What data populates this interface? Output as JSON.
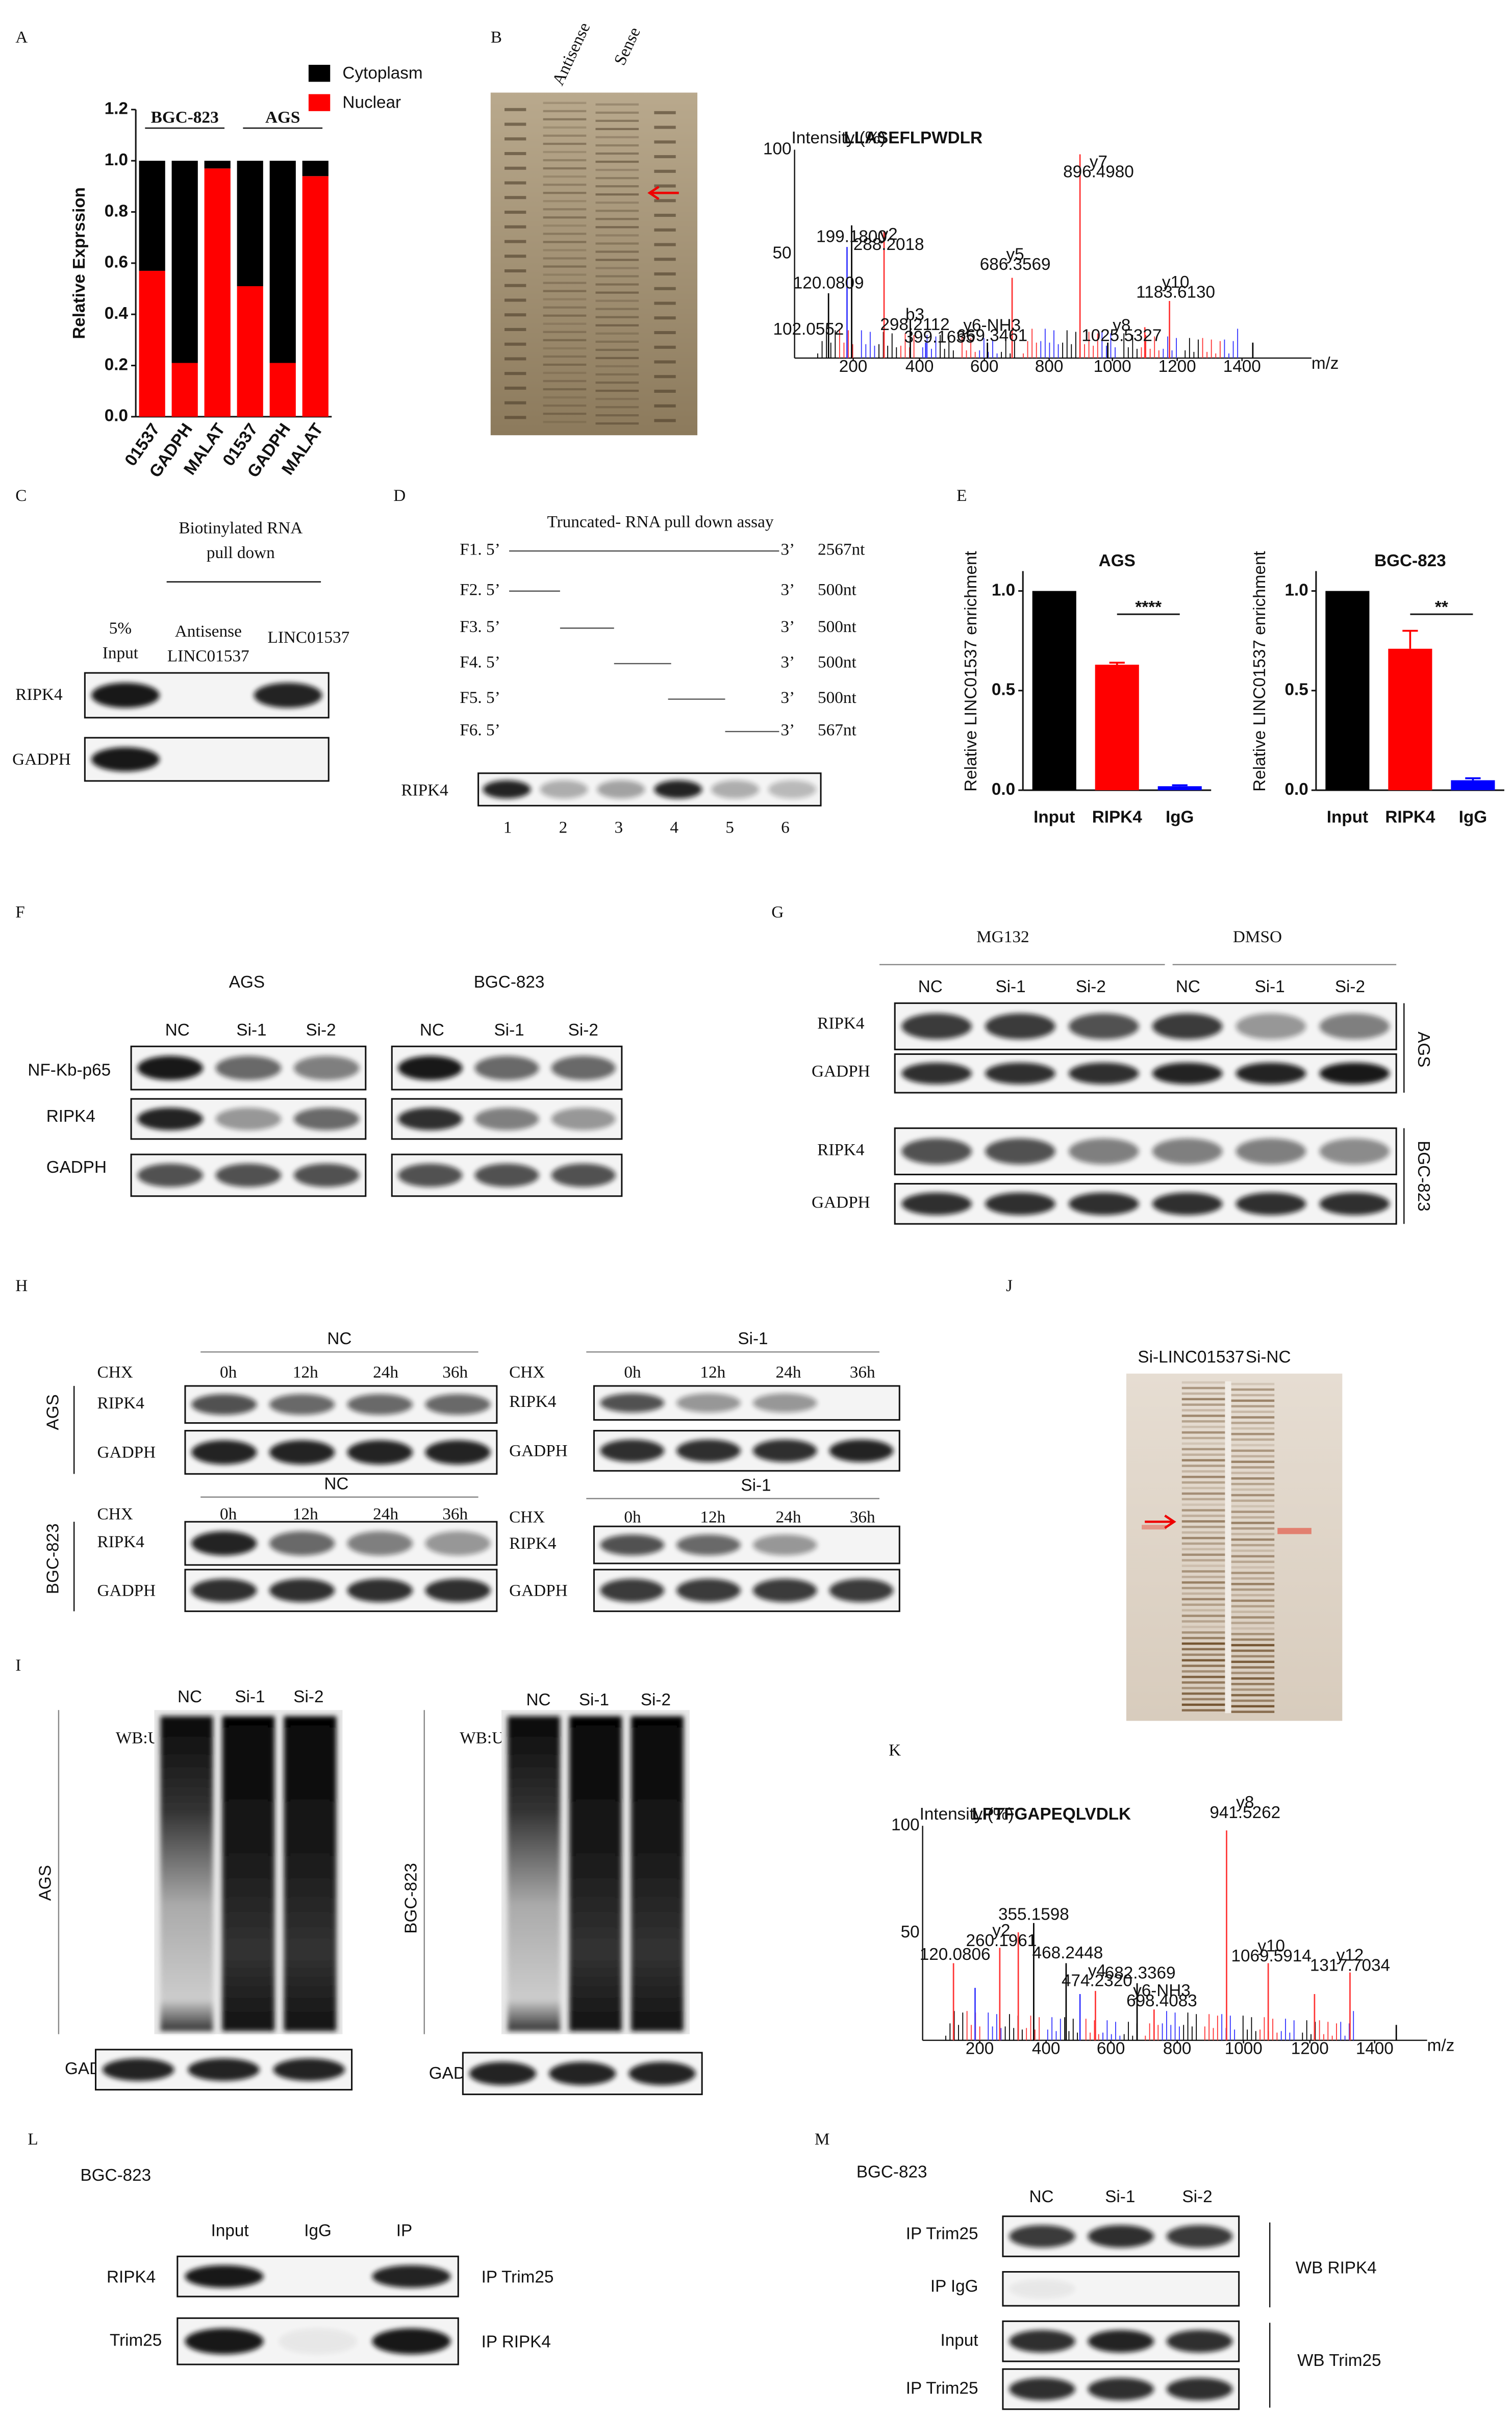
{
  "panel_a": {
    "label": "A",
    "chart_data": {
      "type": "stacked_bar",
      "ylabel": "Relative Exprssion",
      "groups": [
        "BGC-823",
        "AGS"
      ],
      "categories": [
        "01537",
        "GADPH",
        "MALAT",
        "01537",
        "GADPH",
        "MALAT"
      ],
      "series": [
        {
          "name": "Cytoplasm",
          "color": "#000000",
          "values": [
            0.43,
            0.79,
            0.03,
            0.49,
            0.79,
            0.06
          ]
        },
        {
          "name": "Nuclear",
          "color": "#ff0000",
          "values": [
            0.57,
            0.21,
            0.97,
            0.51,
            0.21,
            0.94
          ]
        }
      ],
      "ylim": [
        0,
        1.2
      ],
      "yticks": [
        {
          "value": 0,
          "label": "0.0"
        },
        0.2,
        0.4,
        0.6,
        0.8,
        {
          "value": 1,
          "label": "1.0"
        },
        1.2
      ]
    }
  },
  "panel_b": {
    "label": "B",
    "lanes": [
      "Antisense",
      "Sense"
    ],
    "spectrum": {
      "y_title": "Intensity (%)",
      "sequence": "LLASEFLPWDLR",
      "yticks": [
        "100",
        "50"
      ],
      "xticks": [
        "200",
        "400",
        "600",
        "800",
        "1000",
        "1200",
        "1400"
      ],
      "x_title": "m/z",
      "peaks": [
        [
          "y7",
          "896.4980"
        ],
        [
          "y2",
          "288.2018"
        ],
        [
          "199.1800"
        ],
        [
          "120.0809"
        ],
        [
          "y5",
          "686.3569"
        ],
        [
          "b3",
          "298.2112"
        ],
        [
          "399.1635"
        ],
        [
          "y6-NH3",
          "669.3461"
        ],
        [
          "y8",
          "1025.5327"
        ],
        [
          "y10",
          "1183.6130"
        ],
        [
          "102.0552"
        ]
      ]
    }
  },
  "panel_c": {
    "label": "C",
    "title": [
      "Biotinylated RNA",
      "pull down"
    ],
    "lanes": [
      [
        "5%",
        "Input"
      ],
      [
        "Antisense",
        "LINC01537"
      ],
      [
        "LINC01537"
      ]
    ],
    "rows": [
      "RIPK4",
      "GADPH"
    ]
  },
  "panel_d": {
    "label": "D",
    "title": "Truncated- RNA pull down assay",
    "fragments": [
      {
        "name": "F1. 5’",
        "end": "3’",
        "length": "2567nt"
      },
      {
        "name": "F2. 5’",
        "end": "3’",
        "length": "500nt"
      },
      {
        "name": "F3. 5’",
        "end": "3’",
        "length": "500nt"
      },
      {
        "name": "F4. 5’",
        "end": "3’",
        "length": "500nt"
      },
      {
        "name": "F5. 5’",
        "end": "3’",
        "length": "500nt"
      },
      {
        "name": "F6. 5’",
        "end": "3’",
        "length": "567nt"
      }
    ],
    "blot_row": "RIPK4",
    "lanes": [
      "1",
      "2",
      "3",
      "4",
      "5",
      "6"
    ]
  },
  "panel_e": {
    "label": "E",
    "charts": [
      {
        "type": "bar",
        "title": "AGS",
        "ylabel": "Relative LINC01537 enrichment",
        "categories": [
          "Input",
          "RIPK4",
          "IgG"
        ],
        "values": [
          1,
          0.63,
          0.02
        ],
        "errors": [
          null,
          0.01,
          0.005
        ],
        "colors": [
          "#000000",
          "#ff0000",
          "#0000ff"
        ],
        "significance": "****",
        "ylim": [
          0,
          1.1
        ],
        "yticks": [
          {
            "value": 0,
            "label": "0.0"
          },
          0.5,
          {
            "value": 1,
            "label": "1.0"
          }
        ]
      },
      {
        "type": "bar",
        "title": "BGC-823",
        "ylabel": "Relative LINC01537 enrichment",
        "categories": [
          "Input",
          "RIPK4",
          "IgG"
        ],
        "values": [
          1,
          0.71,
          0.05
        ],
        "errors": [
          null,
          0.09,
          0.01
        ],
        "colors": [
          "#000000",
          "#ff0000",
          "#0000ff"
        ],
        "significance": "**",
        "ylim": [
          0,
          1.1
        ],
        "yticks": [
          {
            "value": 0,
            "label": "0.0"
          },
          0.5,
          {
            "value": 1,
            "label": "1.0"
          }
        ]
      }
    ]
  },
  "panel_f": {
    "label": "F",
    "groups": [
      "AGS",
      "BGC-823"
    ],
    "lanes": [
      [
        "NC",
        "Si-1",
        "Si-2"
      ],
      [
        "NC",
        "Si-1",
        "Si-2"
      ]
    ],
    "rows": [
      "NF-Kb-p65",
      "RIPK4",
      "GADPH"
    ]
  },
  "panel_g": {
    "label": "G",
    "treatments": [
      "MG132",
      "DMSO"
    ],
    "lanes": [
      "NC",
      "Si-1",
      "Si-2",
      "NC",
      "Si-1",
      "Si-2"
    ],
    "cell_lines": [
      "AGS",
      "BGC-823"
    ],
    "rows": [
      "RIPK4",
      "GADPH",
      "RIPK4",
      "GADPH"
    ]
  },
  "panel_h": {
    "label": "H",
    "cell_lines": [
      "AGS",
      "BGC-823"
    ],
    "blocks": [
      {
        "group": "NC",
        "chx": "CHX",
        "times": [
          "0h",
          "12h",
          "24h",
          "36h"
        ],
        "rows": [
          "RIPK4",
          "GADPH"
        ]
      },
      {
        "group": "Si-1",
        "chx": "CHX",
        "times": [
          "0h",
          "12h",
          "24h",
          "36h"
        ],
        "rows": [
          "RIPK4",
          "GADPH"
        ]
      },
      {
        "group": "NC",
        "chx": "CHX",
        "times": [
          "0h",
          "12h",
          "24h",
          "36h"
        ],
        "rows": [
          "RIPK4",
          "GADPH"
        ]
      },
      {
        "group": "Si-1",
        "chx": "CHX",
        "times": [
          "0h",
          "12h",
          "24h",
          "36h"
        ],
        "rows": [
          "RIPK4",
          "GADPH"
        ]
      }
    ]
  },
  "panel_i": {
    "label": "I",
    "blots": [
      {
        "cell_line": "AGS",
        "lanes": [
          "NC",
          "Si-1",
          "Si-2"
        ],
        "probe": "WB:Ub",
        "loading": "GADPH"
      },
      {
        "cell_line": "BGC-823",
        "lanes": [
          "NC",
          "Si-1",
          "Si-2"
        ],
        "probe": "WB:Ub",
        "loading": "GADPH"
      }
    ]
  },
  "panel_j": {
    "label": "J",
    "lanes": [
      "Si-LINC01537",
      "Si-NC"
    ]
  },
  "panel_k": {
    "label": "K",
    "spectrum": {
      "y_title": "Intensity (%)",
      "sequence": "LPTFGAPEQLVDLK",
      "yticks": [
        "100",
        "50"
      ],
      "xticks": [
        "200",
        "400",
        "600",
        "800",
        "1000",
        "1200",
        "1400"
      ],
      "x_title": "m/z",
      "peaks": [
        [
          "y8",
          "941.5262"
        ],
        [
          "355.1598"
        ],
        [
          "y2",
          "260.1961"
        ],
        [
          "120.0806"
        ],
        [
          "468.2448"
        ],
        [
          "y4",
          "474.2320"
        ],
        [
          "682.3369"
        ],
        [
          "y6-NH3",
          "698.4083"
        ],
        [
          "y10",
          "1069.5914"
        ],
        [
          "y12",
          "1317.7034"
        ]
      ]
    }
  },
  "panel_l": {
    "label": "L",
    "cell_line": "BGC-823",
    "lanes": [
      "Input",
      "IgG",
      "IP"
    ],
    "rows": [
      {
        "name": "RIPK4",
        "ip": "IP Trim25"
      },
      {
        "name": "Trim25",
        "ip": "IP RIPK4"
      }
    ]
  },
  "panel_m": {
    "label": "M",
    "cell_line": "BGC-823",
    "lanes": [
      "NC",
      "Si-1",
      "Si-2"
    ],
    "rows": [
      "IP Trim25",
      "IP IgG",
      "Input",
      "IP Trim25"
    ],
    "wb": [
      "WB RIPK4",
      "WB Trim25"
    ]
  }
}
